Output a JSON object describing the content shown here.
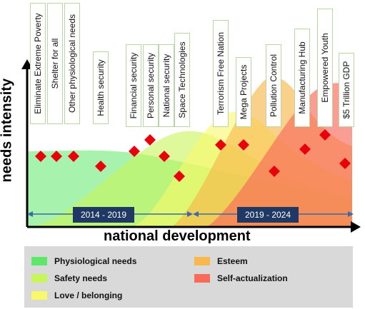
{
  "axes": {
    "y_title": "needs intensity",
    "x_title": "national development"
  },
  "periods": [
    "2014 - 2019",
    "2019 - 2024"
  ],
  "goals": [
    "Eliminate Extreme Poverty",
    "Shelter for all",
    "Other physiological needs",
    "Health security",
    "Financial security",
    "Personal security",
    "National security",
    "Space Technologies",
    "Terrorism Free Nation",
    "Mega Projects",
    "Pollution Control",
    "Manufacturing Hub",
    "Empowered Youth",
    "$5 Trillion GDP"
  ],
  "legend": [
    {
      "label": "Physiological needs",
      "color": "#5ee86a"
    },
    {
      "label": "Safety needs",
      "color": "#c8f55a"
    },
    {
      "label": "Love / belonging",
      "color": "#f8f86a"
    },
    {
      "label": "Esteem",
      "color": "#f8b84c"
    },
    {
      "label": "Self-actualization",
      "color": "#f86a5a"
    }
  ],
  "colors": {
    "marker": "#e8000b",
    "arrow": "#3a6aa8",
    "axis": "#000000",
    "label_border": "#b9d7a6",
    "period_bg": "#203864"
  }
}
